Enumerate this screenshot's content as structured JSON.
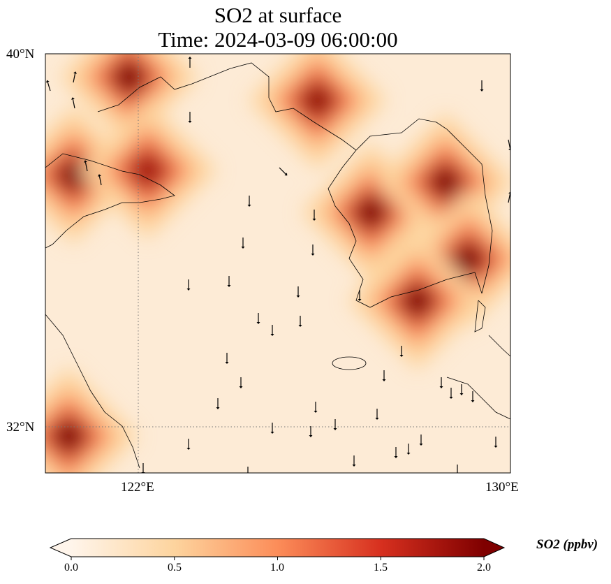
{
  "title_line1": "SO2 at surface",
  "title_line2": "Time: 2024-03-09 06:00:00",
  "axes": {
    "lat_ticks": [
      {
        "label": "40°N",
        "value": 40
      },
      {
        "label": "32°N",
        "value": 32
      }
    ],
    "lon_ticks": [
      {
        "label": "122°E",
        "value": 122
      },
      {
        "label": "130°E",
        "value": 130
      }
    ],
    "extent": {
      "lon": [
        120,
        130
      ],
      "lat": [
        31,
        40
      ]
    }
  },
  "colorbar": {
    "label": "SO2 (ppbv)",
    "ticks": [
      "0.0",
      "0.5",
      "1.0",
      "1.5",
      "2.0"
    ],
    "range": [
      0,
      2
    ],
    "colors": [
      "#fff5eb",
      "#fdd49e",
      "#fc8d59",
      "#d7301f",
      "#7f0000"
    ]
  },
  "chart_data": {
    "type": "heatmap",
    "title": "SO2 at surface\nTime: 2024-03-09 06:00:00",
    "variable": "SO2 (ppbv)",
    "background_value": 0.25,
    "hotspots": [
      {
        "lon": 121.8,
        "lat": 39.5,
        "value": 2.0
      },
      {
        "lon": 120.6,
        "lat": 37.4,
        "value": 2.0
      },
      {
        "lon": 122.2,
        "lat": 37.5,
        "value": 1.8
      },
      {
        "lon": 125.85,
        "lat": 39.0,
        "value": 1.9
      },
      {
        "lon": 127.0,
        "lat": 36.6,
        "value": 2.0
      },
      {
        "lon": 128.6,
        "lat": 37.25,
        "value": 2.0
      },
      {
        "lon": 129.1,
        "lat": 35.6,
        "value": 2.0
      },
      {
        "lon": 128.0,
        "lat": 34.7,
        "value": 2.0
      },
      {
        "lon": 120.5,
        "lat": 31.8,
        "value": 2.0
      }
    ],
    "wind_vectors": "mostly southward (northerly wind) over the Yellow Sea"
  }
}
